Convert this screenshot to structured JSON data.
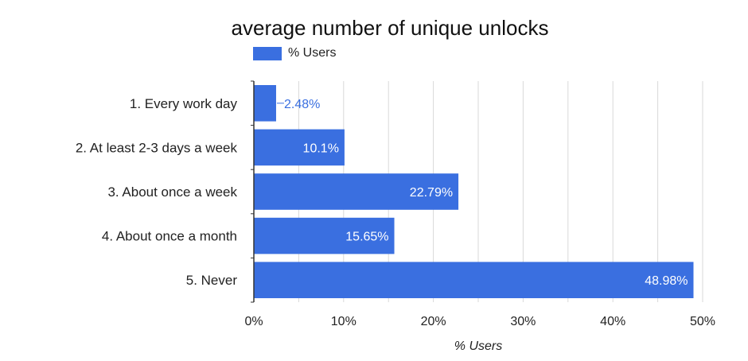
{
  "chart_data": {
    "type": "bar",
    "orientation": "horizontal",
    "title": "average number of unique unlocks",
    "categories": [
      "1. Every work day",
      "2. At least 2-3 days a week",
      "3. About once a week",
      "4. About once a month",
      "5. Never"
    ],
    "series": [
      {
        "name": "% Users",
        "values": [
          2.48,
          10.1,
          22.79,
          15.65,
          48.98
        ],
        "labels": [
          "2.48%",
          "10.1%",
          "22.79%",
          "15.65%",
          "48.98%"
        ]
      }
    ],
    "xlabel": "% Users",
    "ylabel": "",
    "xlim": [
      0,
      50
    ],
    "ticks": [
      0,
      10,
      20,
      30,
      40,
      50
    ],
    "tick_labels": [
      "0%",
      "10%",
      "20%",
      "30%",
      "40%",
      "50%"
    ],
    "grid": true,
    "legend_position": "top",
    "colors": {
      "bar": "#3a6fe0",
      "label_inside": "#ffffff",
      "label_outside": "#3a6fe0",
      "grid": "#d9d9d9",
      "axis": "#333333"
    }
  }
}
